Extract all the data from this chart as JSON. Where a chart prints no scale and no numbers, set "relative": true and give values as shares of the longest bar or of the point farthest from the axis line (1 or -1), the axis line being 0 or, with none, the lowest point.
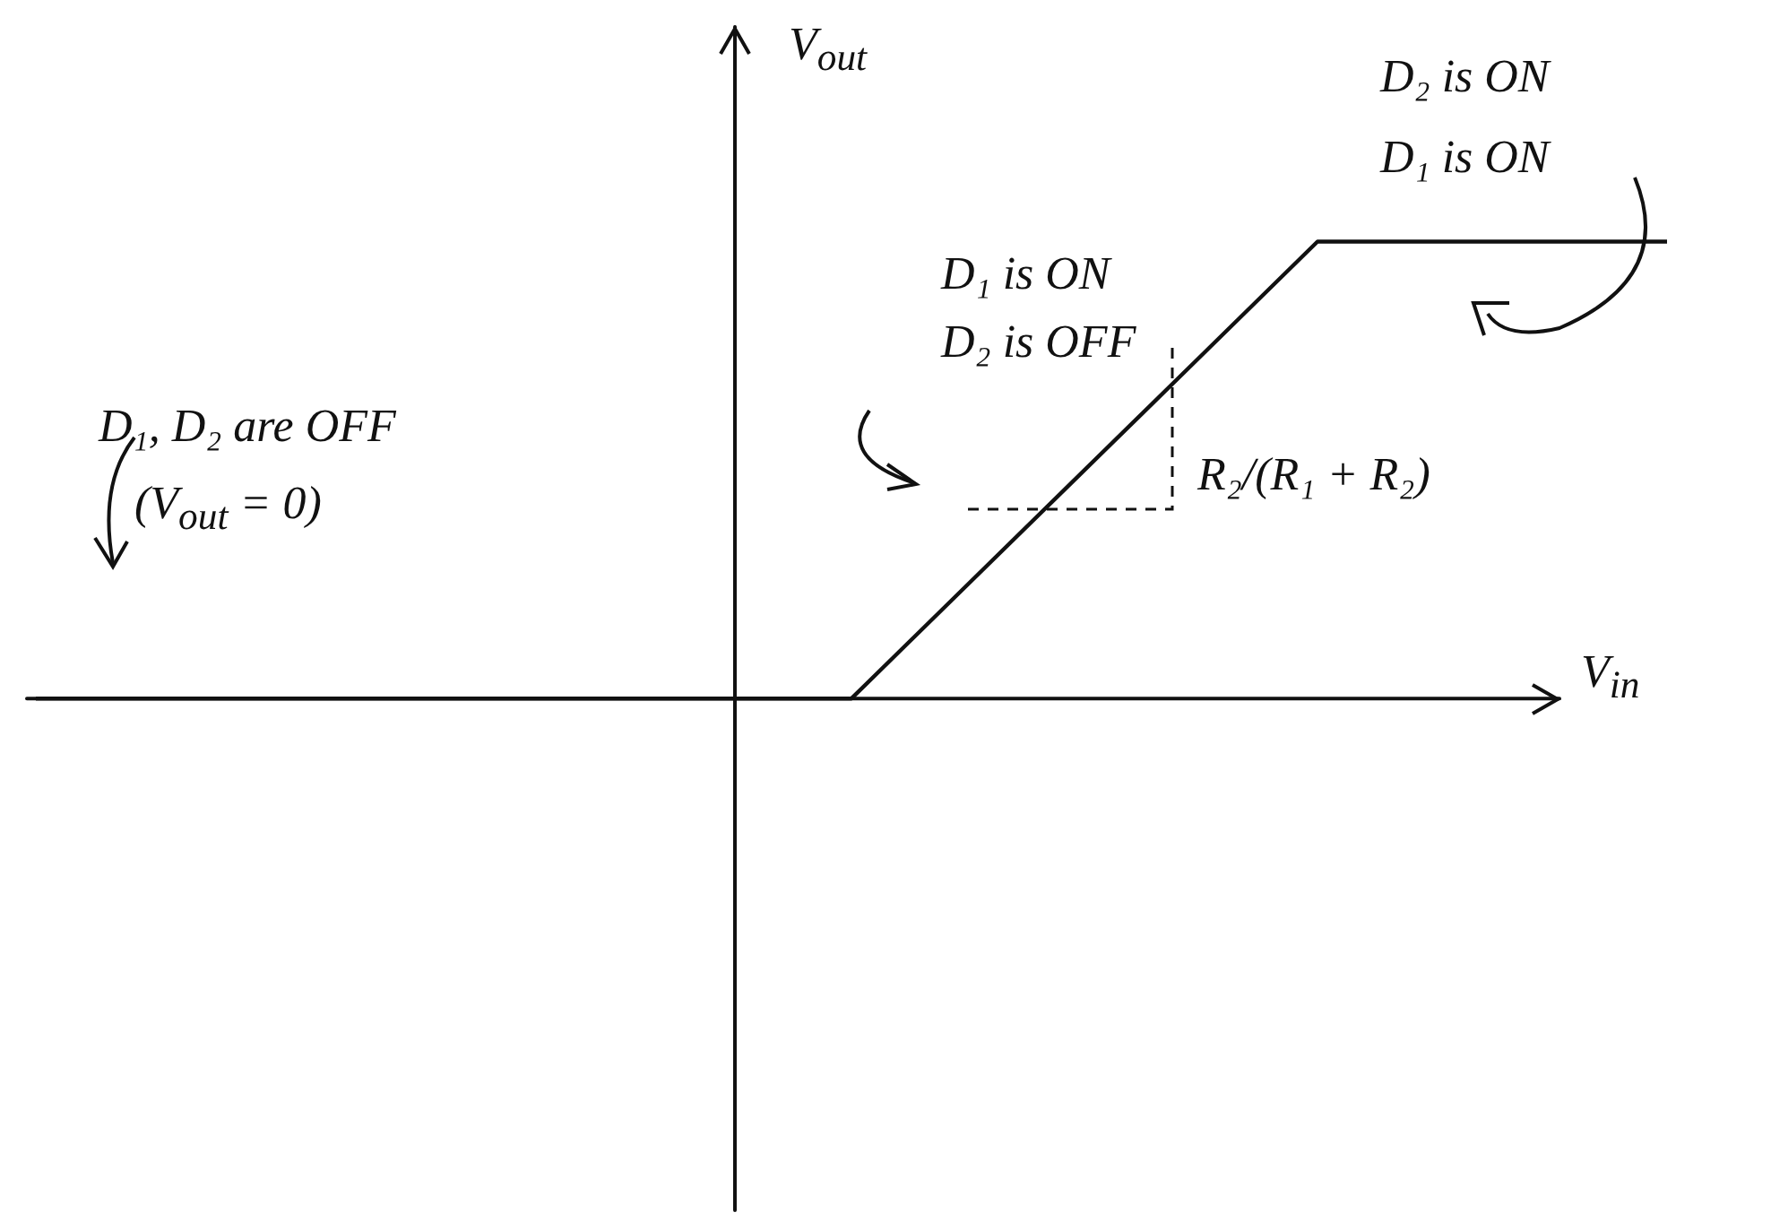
{
  "chart_data": {
    "type": "line",
    "relative": true,
    "color": "#111111",
    "categories": [
      null,
      null,
      null,
      null,
      null,
      null,
      null,
      null,
      null,
      null,
      null,
      null,
      null,
      null,
      null
    ],
    "values": [
      0,
      0,
      0,
      0,
      0,
      0,
      0,
      0,
      0.25,
      0.5,
      0.75,
      1,
      1,
      1,
      1
    ],
    "xlabel": "V$_{in}$",
    "ylabel": "V$_{out}$",
    "annotations": [
      "D₂ is ON",
      "D₁ is ON",
      "D₁ is ON",
      "D₂ is OFF",
      "D₁, D₂ are OFF",
      "(V$_{out}$ = 0)",
      "R₂/(R₁ + R₂)"
    ]
  }
}
